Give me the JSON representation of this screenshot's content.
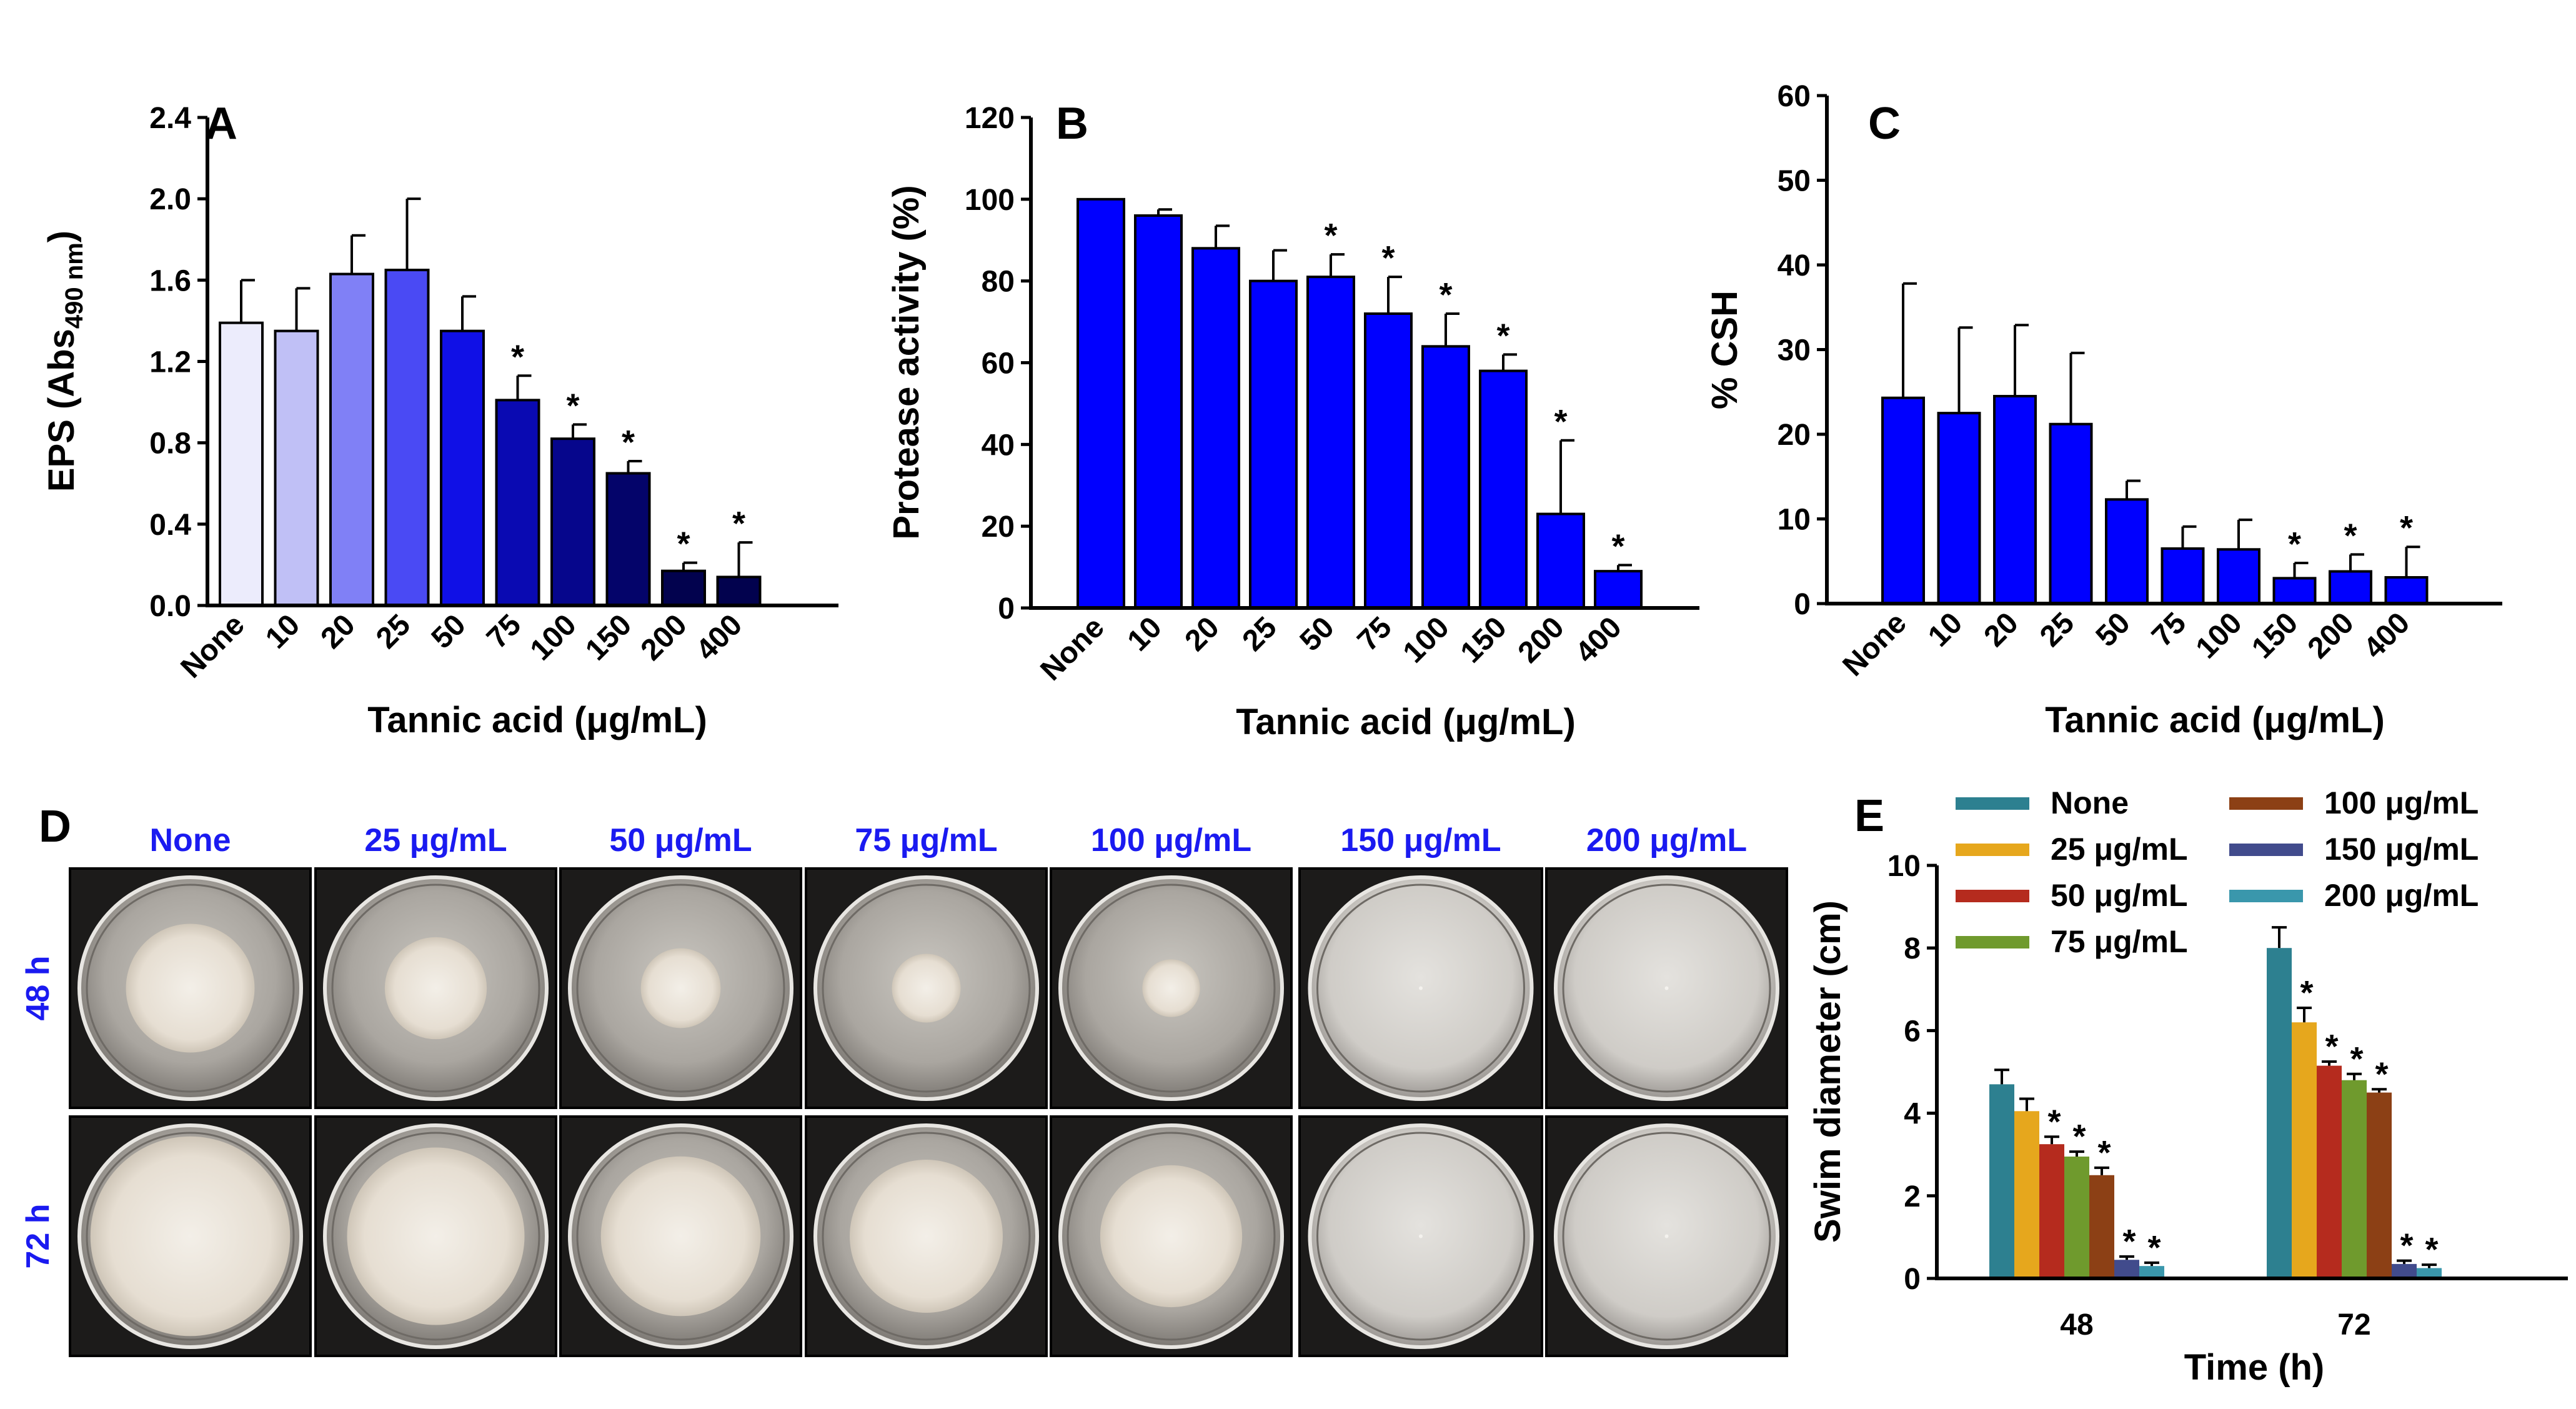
{
  "chart_data": [
    {
      "panel": "A",
      "type": "bar",
      "xlabel": "Tannic acid (μg/mL)",
      "ylabel_main": "EPS (Abs",
      "ylabel_sub": "490 nm",
      "ylabel_close": ")",
      "ylim": [
        0,
        2.4
      ],
      "yticks": [
        "0.0",
        "0.4",
        "0.8",
        "1.2",
        "1.6",
        "2.0",
        "2.4"
      ],
      "categories": [
        "None",
        "10",
        "20",
        "25",
        "50",
        "75",
        "100",
        "150",
        "200",
        "400"
      ],
      "values": [
        1.39,
        1.35,
        1.63,
        1.65,
        1.35,
        1.01,
        0.82,
        0.65,
        0.17,
        0.14
      ],
      "errors": [
        0.21,
        0.21,
        0.19,
        0.35,
        0.17,
        0.12,
        0.07,
        0.06,
        0.04,
        0.17
      ],
      "significant": [
        false,
        false,
        false,
        false,
        false,
        true,
        true,
        true,
        true,
        true
      ],
      "colors": [
        "#ececfc",
        "#c0c0f6",
        "#8080f6",
        "#4a4af4",
        "#1010e6",
        "#0a0ab2",
        "#06068c",
        "#04046a",
        "#02024e",
        "#02024e"
      ]
    },
    {
      "panel": "B",
      "type": "bar",
      "xlabel": "Tannic acid (μg/mL)",
      "ylabel": "Protease activity (%)",
      "ylim": [
        0,
        120
      ],
      "yticks": [
        "0",
        "20",
        "40",
        "60",
        "80",
        "100",
        "120"
      ],
      "categories": [
        "None",
        "10",
        "20",
        "25",
        "50",
        "75",
        "100",
        "150",
        "200",
        "400"
      ],
      "values": [
        100,
        96,
        88,
        80,
        81,
        72,
        64,
        58,
        23,
        9
      ],
      "errors": [
        0,
        1.5,
        5.5,
        7.5,
        5.5,
        9,
        8,
        4,
        18,
        1.5
      ],
      "significant": [
        false,
        false,
        false,
        false,
        true,
        true,
        true,
        true,
        true,
        true
      ],
      "colors": [
        "#0000ff"
      ]
    },
    {
      "panel": "C",
      "type": "bar",
      "xlabel": "Tannic acid (μg/mL)",
      "ylabel": "% CSH",
      "ylim": [
        0,
        60
      ],
      "yticks": [
        "0",
        "10",
        "20",
        "30",
        "40",
        "50",
        "60"
      ],
      "categories": [
        "None",
        "10",
        "20",
        "25",
        "50",
        "75",
        "100",
        "150",
        "200",
        "400"
      ],
      "values": [
        24.3,
        22.5,
        24.5,
        21.2,
        12.3,
        6.5,
        6.4,
        3.0,
        3.8,
        3.1
      ],
      "errors": [
        13.5,
        10.1,
        8.4,
        8.4,
        2.2,
        2.6,
        3.5,
        1.8,
        2.0,
        3.6
      ],
      "significant": [
        false,
        false,
        false,
        false,
        false,
        false,
        false,
        true,
        true,
        true
      ],
      "colors": [
        "#0000ff"
      ]
    },
    {
      "panel": "E",
      "type": "bar",
      "xlabel": "Time (h)",
      "ylabel": "Swim diameter (cm)",
      "ylim": [
        0,
        10
      ],
      "yticks": [
        "0",
        "2",
        "4",
        "6",
        "8",
        "10"
      ],
      "categories": [
        "48",
        "72"
      ],
      "legend_position": "top-right",
      "series": [
        {
          "name": "None",
          "values": [
            4.7,
            8.0
          ],
          "errors": [
            0.35,
            0.5
          ],
          "significant": [
            false,
            false
          ],
          "color": "#2d8090"
        },
        {
          "name": "25 μg/mL",
          "values": [
            4.05,
            6.2
          ],
          "errors": [
            0.3,
            0.35
          ],
          "significant": [
            false,
            true
          ],
          "color": "#e6a71d"
        },
        {
          "name": "50 μg/mL",
          "values": [
            3.25,
            5.15
          ],
          "errors": [
            0.18,
            0.1
          ],
          "significant": [
            true,
            true
          ],
          "color": "#b52b1e"
        },
        {
          "name": "75 μg/mL",
          "values": [
            2.95,
            4.8
          ],
          "errors": [
            0.12,
            0.15
          ],
          "significant": [
            true,
            true
          ],
          "color": "#6f9a2d"
        },
        {
          "name": "100 μg/mL",
          "values": [
            2.5,
            4.5
          ],
          "errors": [
            0.18,
            0.08
          ],
          "significant": [
            true,
            true
          ],
          "color": "#8c4015"
        },
        {
          "name": "150 μg/mL",
          "values": [
            0.45,
            0.35
          ],
          "errors": [
            0.08,
            0.08
          ],
          "significant": [
            true,
            true
          ],
          "color": "#414b8c"
        },
        {
          "name": "200 μg/mL",
          "values": [
            0.3,
            0.25
          ],
          "errors": [
            0.08,
            0.08
          ],
          "significant": [
            true,
            true
          ],
          "color": "#3a97ac"
        }
      ]
    }
  ],
  "panel_d": {
    "letter": "D",
    "columns": [
      "None",
      "25 μg/mL",
      "50 μg/mL",
      "75 μg/mL",
      "100 μg/mL",
      "150 μg/mL",
      "200 μg/mL"
    ],
    "rows": [
      "48 h",
      "72 h"
    ],
    "colony_relative_size": [
      [
        0.58,
        0.46,
        0.36,
        0.31,
        0.26,
        0,
        0
      ],
      [
        0.9,
        0.8,
        0.72,
        0.69,
        0.64,
        0,
        0
      ]
    ],
    "label_color": "#1a1af0"
  },
  "significance_mark": "*"
}
